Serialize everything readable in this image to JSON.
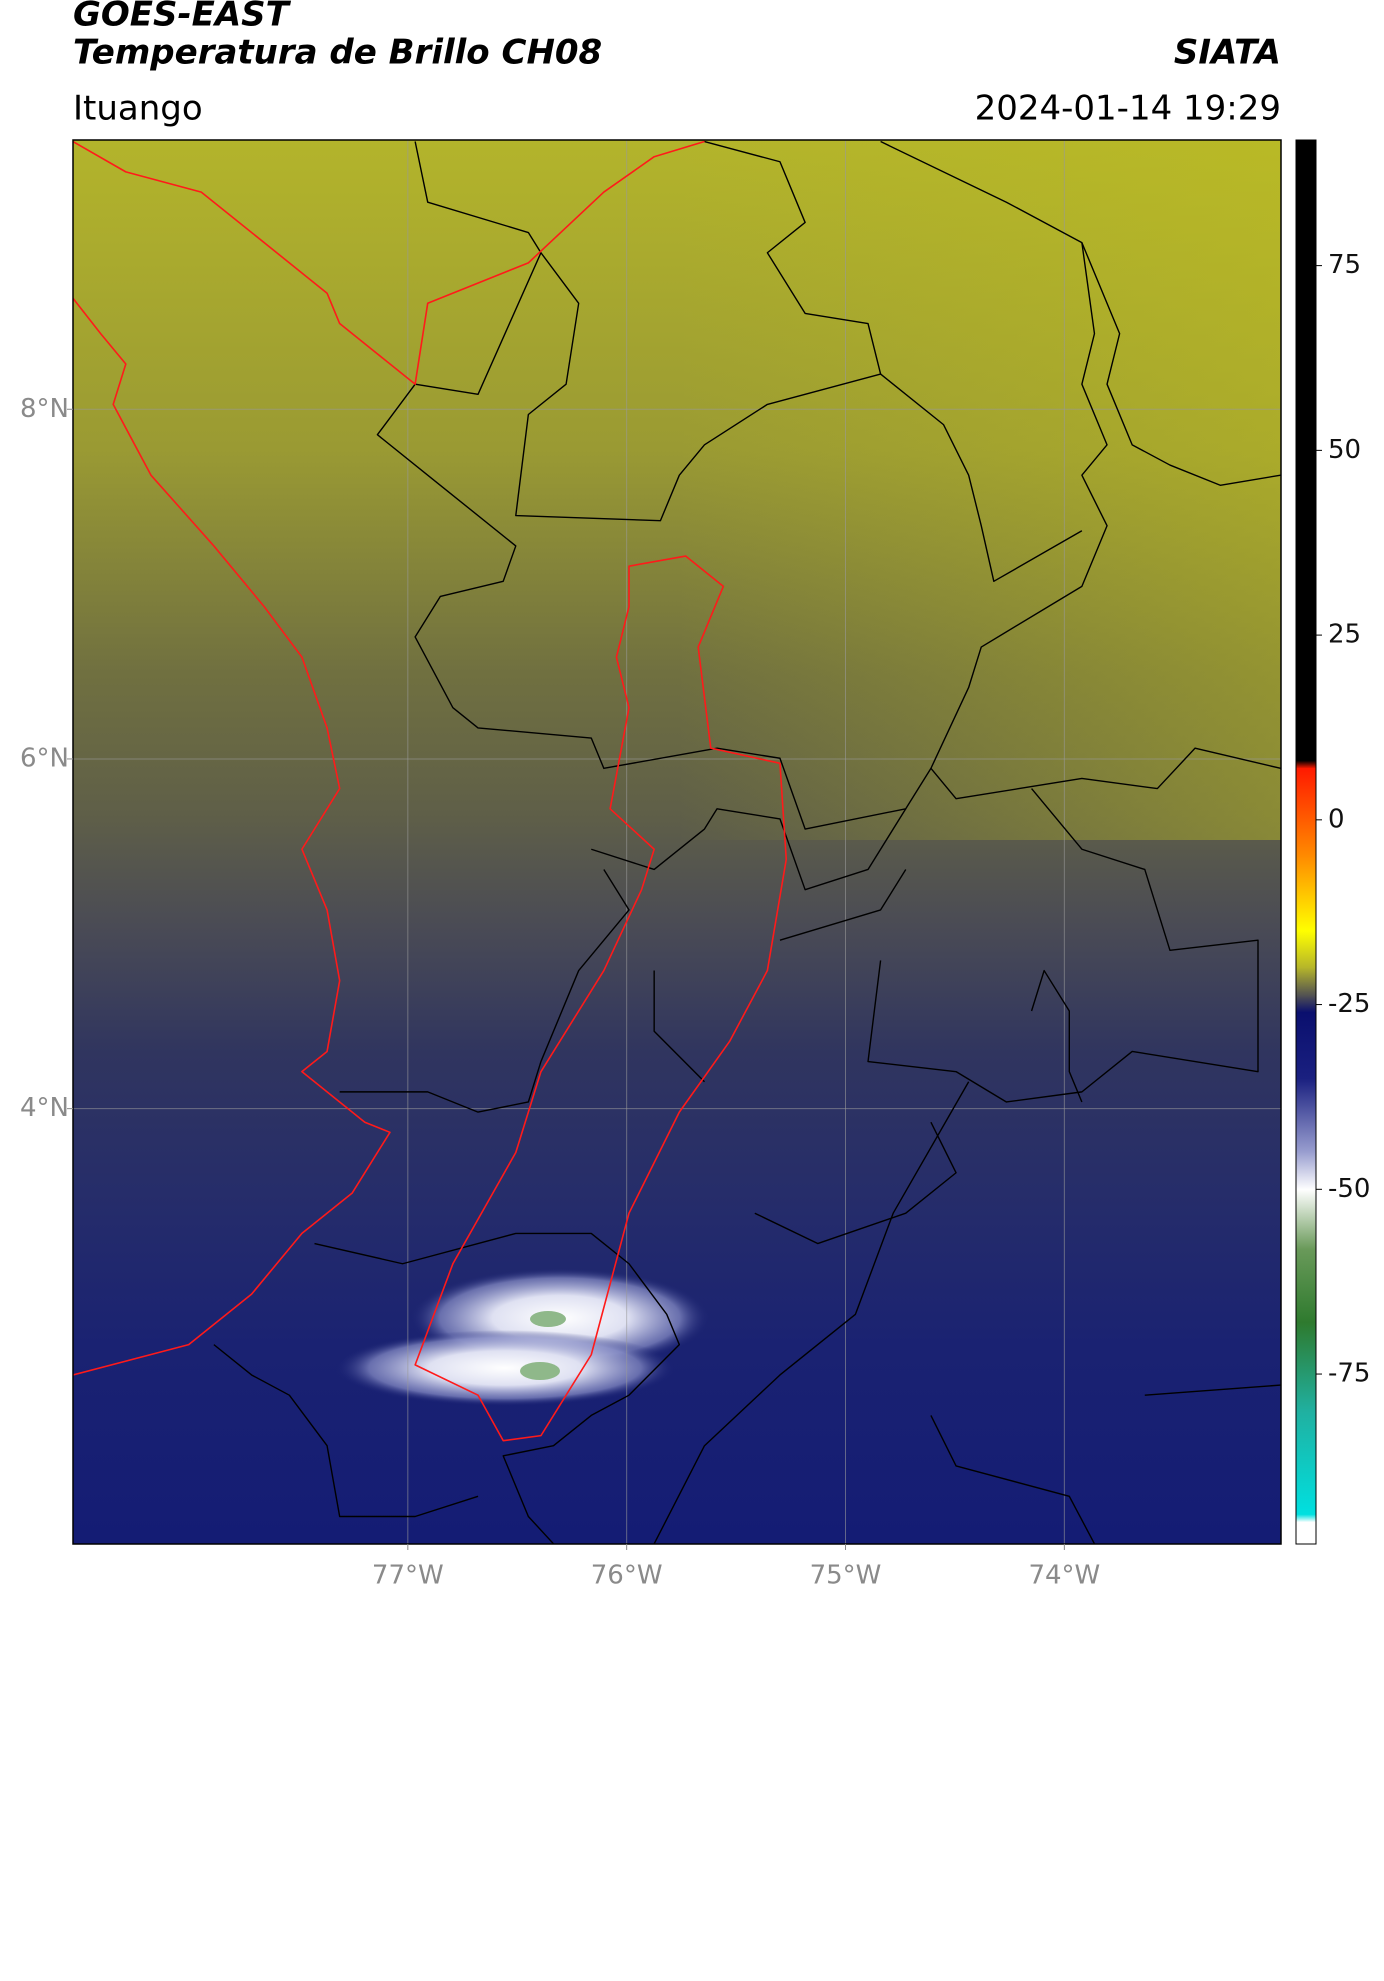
{
  "chart_data": {
    "type": "map",
    "title": "GOES-EAST",
    "subtitle": "Temperatura de Brillo CH08",
    "source": "SIATA",
    "region": "Ituango",
    "datetime": "2024-01-14 19:29",
    "xlim": [
      -78.53,
      -73.01
    ],
    "ylim": [
      1.51,
      9.54
    ],
    "xticks": [
      {
        "value": -77,
        "label": "77°W"
      },
      {
        "value": -76,
        "label": "76°W"
      },
      {
        "value": -75,
        "label": "75°W"
      },
      {
        "value": -74,
        "label": "74°W"
      }
    ],
    "yticks": [
      {
        "value": 8,
        "label": "8°N"
      },
      {
        "value": 6,
        "label": "6°N"
      },
      {
        "value": 4,
        "label": "4°N"
      }
    ],
    "grid": true,
    "colorbar": {
      "lim": [
        -98,
        92
      ],
      "ticks": [
        75,
        50,
        25,
        0,
        -25,
        -50,
        -75
      ],
      "stops": [
        {
          "value": 92,
          "color": "#000000"
        },
        {
          "value": 8,
          "color": "#000000"
        },
        {
          "value": 7,
          "color": "#ff1a00"
        },
        {
          "value": -5,
          "color": "#ff8c00"
        },
        {
          "value": -15,
          "color": "#ffff00"
        },
        {
          "value": -20,
          "color": "#b5b52a"
        },
        {
          "value": -24,
          "color": "#4a4a55"
        },
        {
          "value": -26,
          "color": "#0a0f6e"
        },
        {
          "value": -35,
          "color": "#1a2080"
        },
        {
          "value": -45,
          "color": "#9a9fd0"
        },
        {
          "value": -50,
          "color": "#ffffff"
        },
        {
          "value": -58,
          "color": "#6a9a5a"
        },
        {
          "value": -68,
          "color": "#2e7a2e"
        },
        {
          "value": -80,
          "color": "#20b0a0"
        },
        {
          "value": -94,
          "color": "#00e0e0"
        },
        {
          "value": -95,
          "color": "#ffffff"
        },
        {
          "value": -98,
          "color": "#ffffff"
        }
      ]
    }
  }
}
